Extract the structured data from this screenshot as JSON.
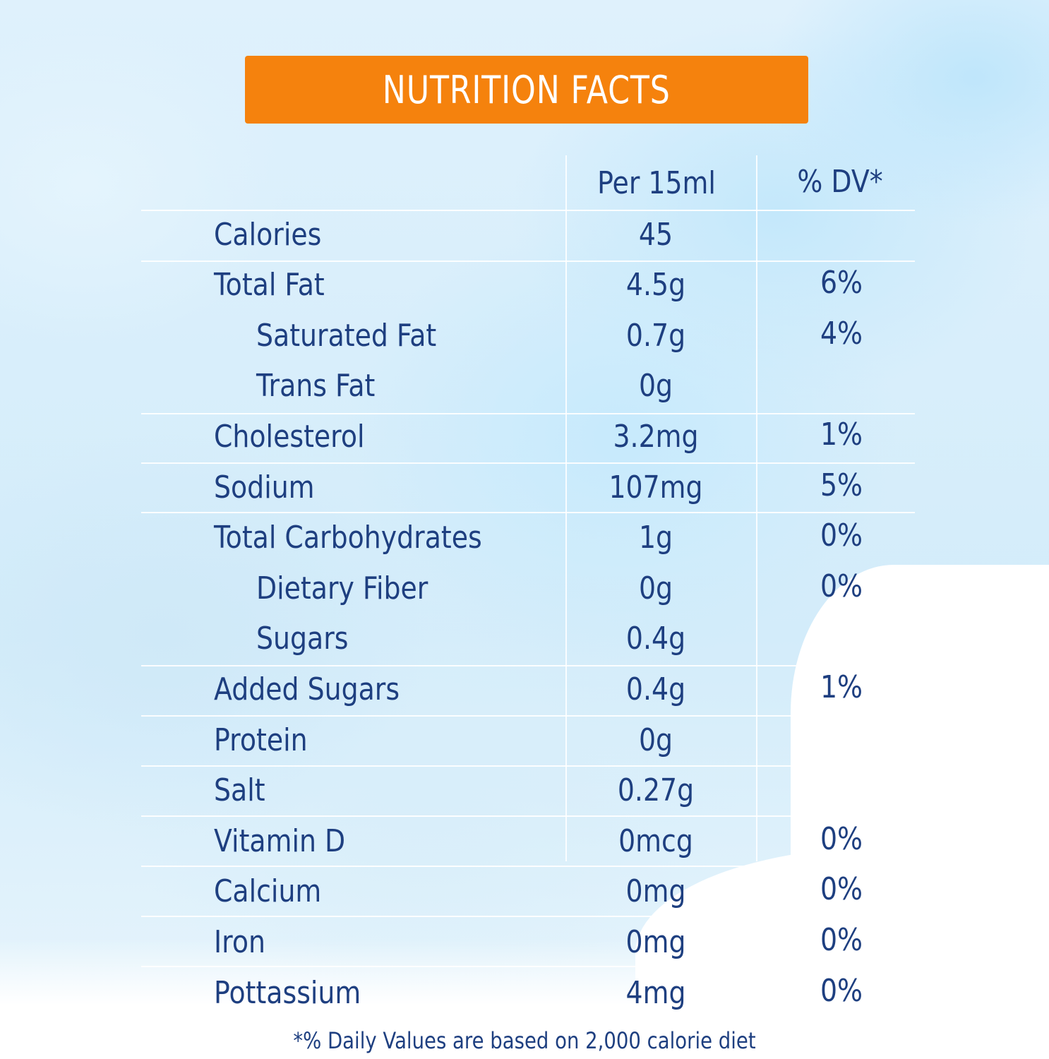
{
  "banner": {
    "title": "NUTRITION FACTS"
  },
  "header": {
    "per": "Per 15ml",
    "dv": "% DV*"
  },
  "rows": [
    {
      "name": "Calories",
      "amount": "45",
      "dv": ""
    },
    {
      "name": "Total Fat",
      "amount": "4.5g",
      "dv": "6%"
    },
    {
      "name": "Saturated Fat",
      "amount": "0.7g",
      "dv": "4%"
    },
    {
      "name": "Trans Fat",
      "amount": "0g",
      "dv": ""
    },
    {
      "name": "Cholesterol",
      "amount": "3.2mg",
      "dv": "1%"
    },
    {
      "name": "Sodium",
      "amount": "107mg",
      "dv": "5%"
    },
    {
      "name": "Total Carbohydrates",
      "amount": "1g",
      "dv": "0%"
    },
    {
      "name": "Dietary Fiber",
      "amount": "0g",
      "dv": "0%"
    },
    {
      "name": "Sugars",
      "amount": "0.4g",
      "dv": ""
    },
    {
      "name": "Added Sugars",
      "amount": "0.4g",
      "dv": "1%"
    },
    {
      "name": "Protein",
      "amount": "0g",
      "dv": ""
    },
    {
      "name": "Salt",
      "amount": "0.27g",
      "dv": ""
    },
    {
      "name": "Vitamin D",
      "amount": "0mcg",
      "dv": "0%"
    },
    {
      "name": "Calcium",
      "amount": "0mg",
      "dv": "0%"
    },
    {
      "name": "Iron",
      "amount": "0mg",
      "dv": "0%"
    },
    {
      "name": "Pottassium",
      "amount": "4mg",
      "dv": "0%"
    }
  ],
  "footnote": "*% Daily Values are based on 2,000 calorie diet",
  "colors": {
    "banner": "#f5820d",
    "text": "#1e3f80",
    "background": "#d3ecfa"
  }
}
